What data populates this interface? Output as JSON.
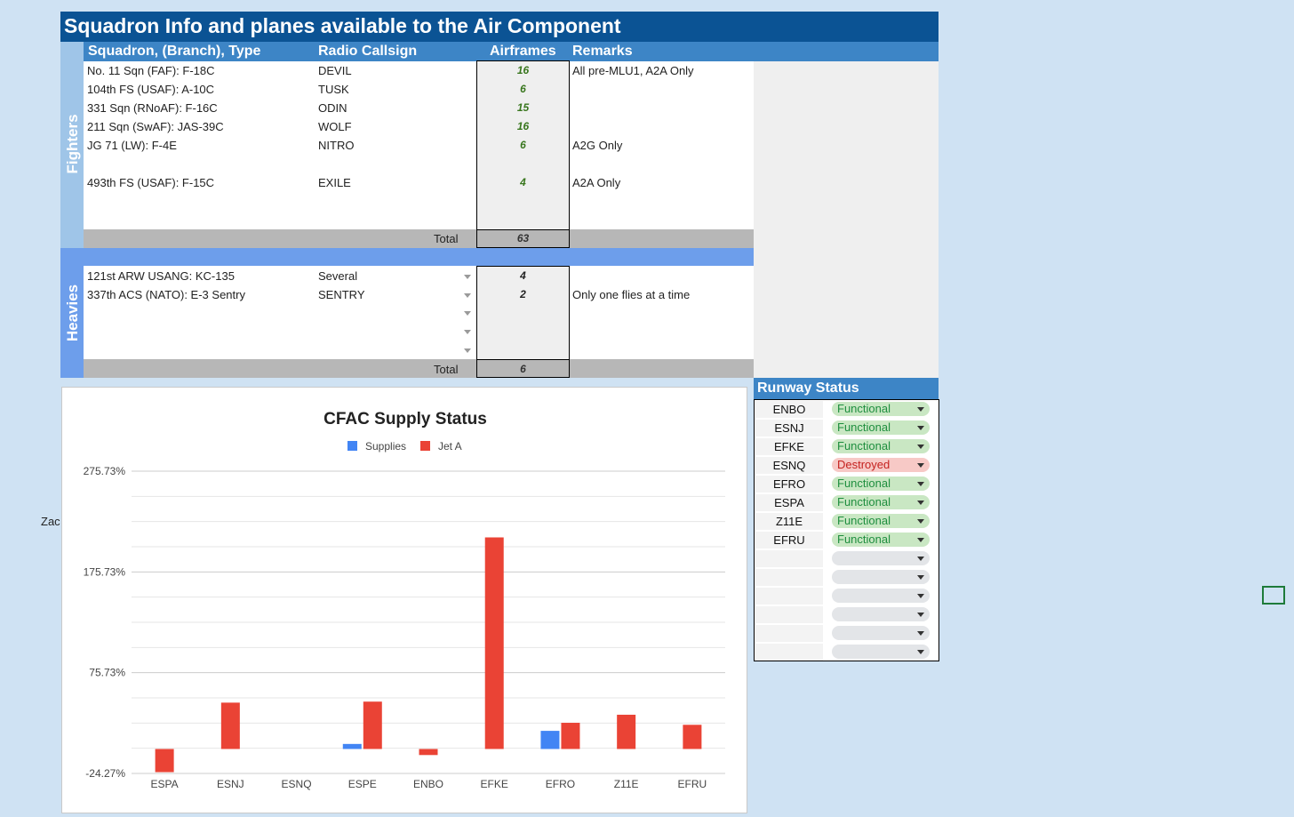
{
  "title": "Squadron Info and planes available to the Air Component",
  "columns": {
    "squadron": "Squadron, (Branch), Type",
    "callsign": "Radio Callsign",
    "airframes": "Airframes",
    "remarks": "Remarks"
  },
  "fighters": {
    "label": "Fighters",
    "rows": [
      {
        "squadron": "No. 11 Sqn (FAF): F-18C",
        "callsign": "DEVIL",
        "airframes": "16",
        "remarks": "All pre-MLU1, A2A Only"
      },
      {
        "squadron": "104th FS (USAF): A-10C",
        "callsign": "TUSK",
        "airframes": "6",
        "remarks": ""
      },
      {
        "squadron": "331 Sqn (RNoAF): F-16C",
        "callsign": "ODIN",
        "airframes": "15",
        "remarks": ""
      },
      {
        "squadron": "211 Sqn  (SwAF): JAS-39C",
        "callsign": "WOLF",
        "airframes": "16",
        "remarks": ""
      },
      {
        "squadron": "JG 71  (LW): F-4E",
        "callsign": "NITRO",
        "airframes": "6",
        "remarks": "A2G Only"
      },
      {
        "squadron": "493th FS  (USAF): F-15C",
        "callsign": "EXILE",
        "airframes": "4",
        "remarks": "A2A Only"
      }
    ],
    "total_label": "Total",
    "total": "63"
  },
  "heavies": {
    "label": "Heavies",
    "rows": [
      {
        "squadron": "121st ARW USANG: KC-135",
        "callsign": "Several",
        "airframes": "4",
        "remarks": ""
      },
      {
        "squadron": "337th ACS (NATO): E-3 Sentry",
        "callsign": "SENTRY",
        "airframes": "2",
        "remarks": "Only one flies at a time"
      }
    ],
    "total_label": "Total",
    "total": "6"
  },
  "runway": {
    "title": "Runway Status",
    "rows": [
      {
        "name": "ENBO",
        "status": "Functional"
      },
      {
        "name": "ESNJ",
        "status": "Functional"
      },
      {
        "name": "EFKE",
        "status": "Functional"
      },
      {
        "name": "ESNQ",
        "status": "Destroyed"
      },
      {
        "name": "EFRO",
        "status": "Functional"
      },
      {
        "name": "ESPA",
        "status": "Functional"
      },
      {
        "name": "Z11E",
        "status": "Functional"
      },
      {
        "name": "EFRU",
        "status": "Functional"
      }
    ],
    "empty_rows": 6
  },
  "side_text": "Zac",
  "colors": {
    "supplies": "#4285f4",
    "jet_a": "#ea4335",
    "title_bg": "#0b5394",
    "header_bg": "#3d85c6"
  },
  "chart_data": {
    "type": "bar",
    "title": "CFAC Supply Status",
    "categories": [
      "ESPA",
      "ESNJ",
      "ESNQ",
      "ESPE",
      "ENBO",
      "EFKE",
      "EFRO",
      "Z11E",
      "EFRU"
    ],
    "series": [
      {
        "name": "Supplies",
        "values": [
          0,
          0,
          0,
          5,
          0,
          0,
          18,
          0,
          0
        ]
      },
      {
        "name": "Jet A",
        "values": [
          -23,
          46,
          0,
          47,
          -6,
          210,
          26,
          34,
          24
        ]
      }
    ],
    "yticks": [
      "275.73%",
      "175.73%",
      "75.73%",
      "-24.27%"
    ],
    "ylim": [
      -24.27,
      275.73
    ],
    "legend": "top",
    "grid": true
  }
}
